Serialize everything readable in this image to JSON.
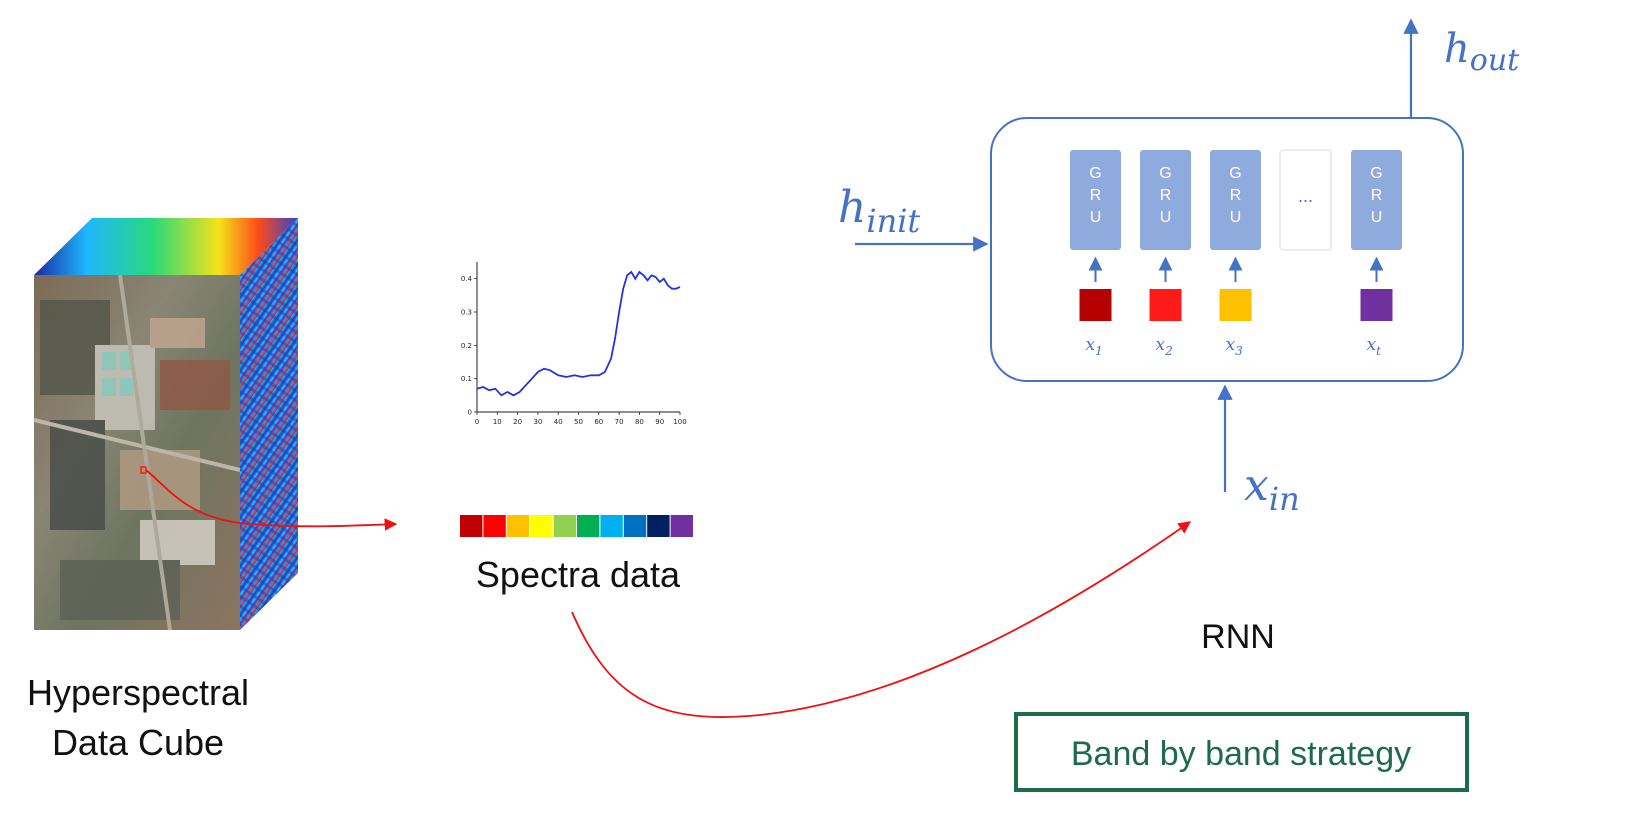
{
  "labels": {
    "cube_title_line1": "Hyperspectral",
    "cube_title_line2": "Data Cube",
    "spectra_title": "Spectra data",
    "rnn_title": "RNN",
    "strategy": "Band by band strategy"
  },
  "rnn": {
    "h_init_base": "h",
    "h_init_sub": "init",
    "h_out_base": "h",
    "h_out_sub": "out",
    "x_in_base": "x",
    "x_in_sub": "in",
    "cells": [
      {
        "letters": [
          "G",
          "R",
          "U"
        ],
        "input_color": "#b50000",
        "x_base": "x",
        "x_sub": "1"
      },
      {
        "letters": [
          "G",
          "R",
          "U"
        ],
        "input_color": "#ff1a1a",
        "x_base": "x",
        "x_sub": "2"
      },
      {
        "letters": [
          "G",
          "R",
          "U"
        ],
        "input_color": "#ffc000",
        "x_base": "x",
        "x_sub": "3"
      },
      {
        "ellipsis": "..."
      },
      {
        "letters": [
          "G",
          "R",
          "U"
        ],
        "input_color": "#7030a0",
        "x_base": "x",
        "x_sub": "t"
      }
    ]
  },
  "spectra_bands": [
    "#c00000",
    "#ff0000",
    "#ffc000",
    "#ffff00",
    "#92d050",
    "#00b050",
    "#00b0f0",
    "#0070c0",
    "#002060",
    "#7030a0"
  ],
  "chart_data": {
    "type": "line",
    "title": "",
    "xlabel": "",
    "ylabel": "",
    "xlim": [
      0,
      100
    ],
    "ylim": [
      0,
      0.45
    ],
    "x_ticks": [
      "0",
      "10",
      "20",
      "30",
      "40",
      "50",
      "60",
      "70",
      "80",
      "90",
      "100"
    ],
    "y_ticks": [
      "0",
      "0.1",
      "0.2",
      "0.3",
      "0.4"
    ],
    "series": [
      {
        "color": "#2233dd",
        "x": [
          0,
          3,
          6,
          9,
          12,
          15,
          18,
          21,
          24,
          27,
          30,
          33,
          36,
          40,
          44,
          48,
          52,
          56,
          60,
          63,
          66,
          68,
          70,
          72,
          74,
          76,
          78,
          80,
          82,
          84,
          86,
          88,
          90,
          92,
          94,
          96,
          98,
          100
        ],
        "y": [
          0.07,
          0.075,
          0.065,
          0.07,
          0.05,
          0.06,
          0.05,
          0.06,
          0.08,
          0.1,
          0.12,
          0.13,
          0.125,
          0.11,
          0.105,
          0.11,
          0.105,
          0.11,
          0.11,
          0.12,
          0.16,
          0.22,
          0.3,
          0.37,
          0.41,
          0.42,
          0.4,
          0.42,
          0.41,
          0.395,
          0.41,
          0.405,
          0.39,
          0.4,
          0.38,
          0.37,
          0.37,
          0.375
        ]
      }
    ]
  },
  "colors": {
    "rnn_blue": "#4472c4",
    "gru_fill": "#8faadc",
    "strategy_green": "#1e6b4c",
    "arrow_red": "#ee1111"
  }
}
